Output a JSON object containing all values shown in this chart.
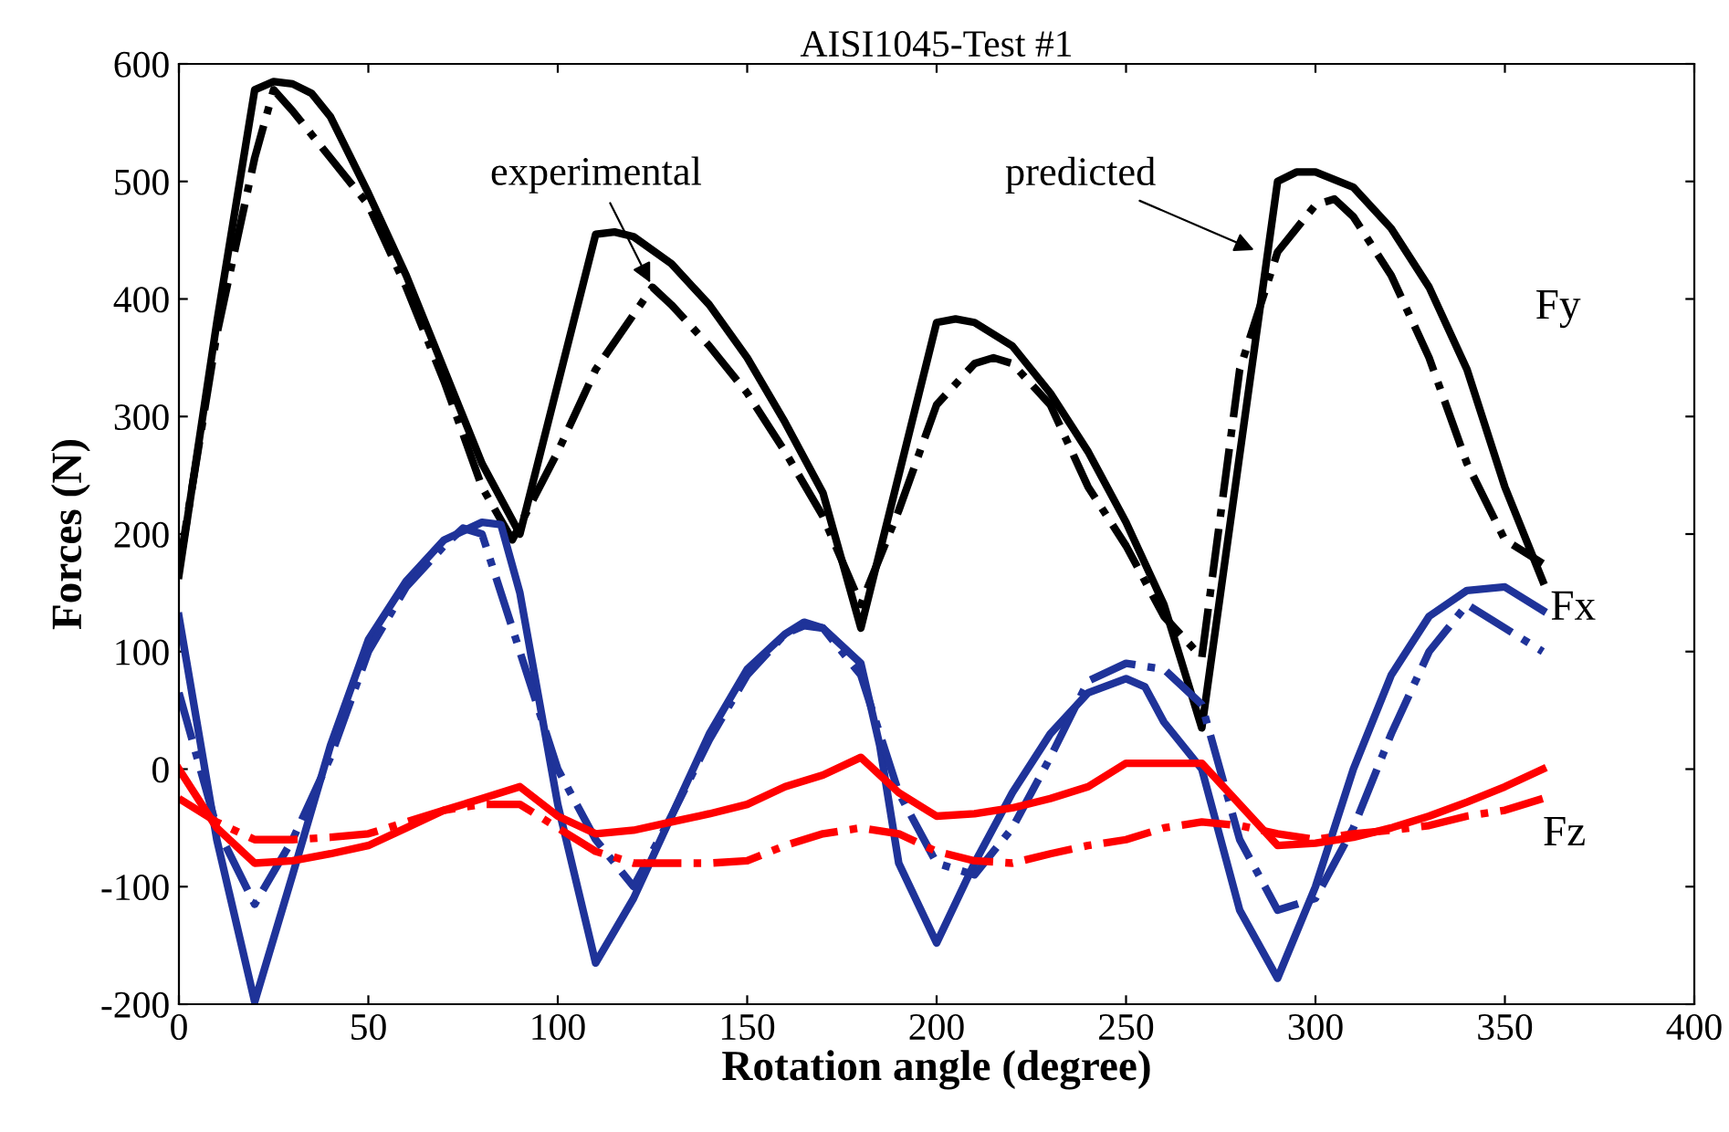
{
  "chart_data": {
    "type": "line",
    "title": "AISI1045-Test #1",
    "xlabel": "Rotation angle (degree)",
    "ylabel": "Forces (N)",
    "xlim": [
      0,
      400
    ],
    "xticks": [
      0,
      50,
      100,
      150,
      200,
      250,
      300,
      350,
      400
    ],
    "ylim": [
      -200,
      600
    ],
    "yticks": [
      -200,
      -100,
      0,
      100,
      200,
      300,
      400,
      500,
      600
    ],
    "grid": false,
    "legend": false,
    "annotations": [
      {
        "text": "experimental",
        "x": 125,
        "y": 410
      },
      {
        "text": "predicted",
        "x": 285,
        "y": 440
      },
      "Fy",
      "Fx",
      "Fz"
    ],
    "series": [
      {
        "color": "#000000",
        "line_style": "solid",
        "x": [
          0,
          10,
          20,
          25,
          30,
          35,
          40,
          50,
          60,
          70,
          80,
          90,
          110,
          115,
          120,
          130,
          140,
          150,
          160,
          170,
          180,
          200,
          205,
          210,
          220,
          230,
          240,
          250,
          260,
          270,
          290,
          295,
          300,
          310,
          320,
          330,
          340,
          350,
          360
        ],
        "values": [
          165,
          380,
          578,
          585,
          583,
          575,
          555,
          490,
          420,
          340,
          260,
          200,
          455,
          457,
          453,
          430,
          395,
          350,
          295,
          235,
          120,
          380,
          383,
          380,
          360,
          320,
          270,
          210,
          140,
          35,
          500,
          508,
          508,
          495,
          460,
          410,
          340,
          240,
          160
        ]
      },
      {
        "color": "#000000",
        "line_style": "dashdot",
        "x": [
          0,
          10,
          20,
          25,
          30,
          40,
          50,
          60,
          70,
          80,
          88,
          100,
          110,
          125,
          130,
          140,
          150,
          160,
          170,
          180,
          190,
          200,
          210,
          215,
          220,
          230,
          240,
          250,
          260,
          270,
          280,
          290,
          300,
          305,
          310,
          320,
          330,
          340,
          350,
          360
        ],
        "values": [
          170,
          370,
          520,
          578,
          560,
          520,
          480,
          410,
          330,
          240,
          195,
          270,
          340,
          410,
          395,
          360,
          320,
          270,
          215,
          140,
          220,
          310,
          345,
          350,
          345,
          310,
          240,
          190,
          130,
          95,
          340,
          440,
          480,
          485,
          470,
          420,
          350,
          260,
          195,
          175
        ]
      },
      {
        "color": "#1f3399",
        "line_style": "solid",
        "x": [
          0,
          10,
          20,
          30,
          40,
          50,
          60,
          70,
          80,
          85,
          90,
          100,
          110,
          120,
          130,
          140,
          150,
          160,
          165,
          170,
          180,
          185,
          190,
          200,
          210,
          220,
          230,
          240,
          250,
          255,
          260,
          270,
          280,
          290,
          300,
          310,
          320,
          330,
          340,
          350,
          360
        ],
        "values": [
          130,
          -60,
          -198,
          -90,
          20,
          110,
          160,
          195,
          210,
          208,
          150,
          -30,
          -165,
          -110,
          -40,
          30,
          85,
          115,
          125,
          120,
          90,
          20,
          -80,
          -148,
          -80,
          -20,
          30,
          65,
          77,
          70,
          40,
          0,
          -120,
          -178,
          -100,
          0,
          80,
          130,
          152,
          155,
          135
        ]
      },
      {
        "color": "#1f3399",
        "line_style": "dashdot",
        "x": [
          0,
          10,
          20,
          30,
          40,
          50,
          60,
          70,
          75,
          80,
          90,
          100,
          110,
          120,
          130,
          140,
          150,
          160,
          165,
          170,
          180,
          190,
          200,
          210,
          220,
          230,
          240,
          250,
          260,
          270,
          280,
          290,
          300,
          310,
          320,
          330,
          340,
          350,
          360
        ],
        "values": [
          65,
          -50,
          -115,
          -60,
          10,
          100,
          155,
          190,
          205,
          200,
          100,
          0,
          -60,
          -100,
          -40,
          25,
          80,
          115,
          122,
          120,
          80,
          -20,
          -80,
          -90,
          -50,
          10,
          75,
          90,
          85,
          55,
          -60,
          -120,
          -110,
          -50,
          30,
          100,
          140,
          120,
          100
        ]
      },
      {
        "color": "#ff0000",
        "line_style": "solid",
        "x": [
          0,
          10,
          20,
          30,
          40,
          50,
          60,
          70,
          80,
          90,
          100,
          110,
          120,
          130,
          140,
          150,
          160,
          170,
          180,
          190,
          200,
          210,
          220,
          230,
          240,
          250,
          260,
          270,
          280,
          290,
          300,
          310,
          320,
          330,
          340,
          350,
          360
        ],
        "values": [
          0,
          -50,
          -80,
          -78,
          -72,
          -65,
          -50,
          -35,
          -25,
          -15,
          -40,
          -55,
          -52,
          -45,
          -38,
          -30,
          -15,
          -5,
          10,
          -20,
          -40,
          -38,
          -33,
          -25,
          -15,
          5,
          5,
          5,
          -30,
          -65,
          -63,
          -58,
          -50,
          -40,
          -28,
          -15,
          0
        ]
      },
      {
        "color": "#ff0000",
        "line_style": "dashdot",
        "x": [
          0,
          10,
          20,
          30,
          40,
          50,
          60,
          70,
          80,
          90,
          100,
          110,
          120,
          130,
          140,
          150,
          160,
          170,
          180,
          190,
          200,
          210,
          220,
          230,
          240,
          250,
          260,
          270,
          280,
          290,
          300,
          310,
          320,
          330,
          340,
          350,
          360
        ],
        "values": [
          -25,
          -45,
          -60,
          -60,
          -58,
          -55,
          -45,
          -35,
          -30,
          -30,
          -50,
          -70,
          -80,
          -80,
          -80,
          -78,
          -65,
          -55,
          -50,
          -55,
          -70,
          -78,
          -80,
          -72,
          -65,
          -60,
          -50,
          -45,
          -48,
          -55,
          -60,
          -55,
          -52,
          -48,
          -40,
          -35,
          -25
        ]
      }
    ]
  }
}
